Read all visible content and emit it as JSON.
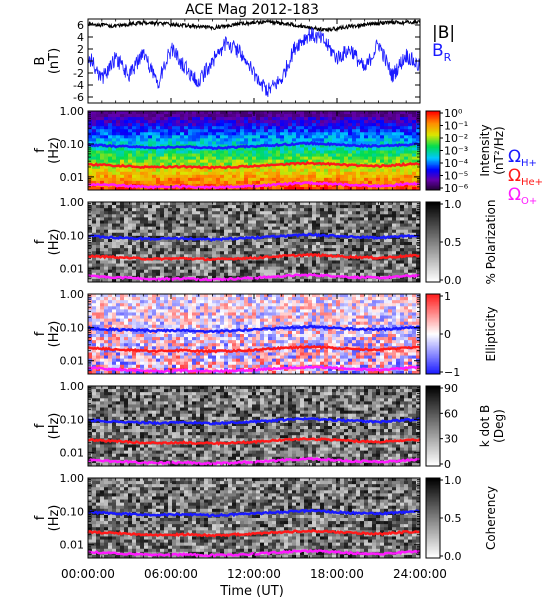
{
  "chart_data": {
    "title": "ACE Mag 2012-183",
    "type": "line",
    "xlabel": "Time (UT)",
    "x_ticks": [
      "00:00:00",
      "06:00:00",
      "12:00:00",
      "18:00:00",
      "24:00:00"
    ],
    "x_tick_hours": [
      0,
      6,
      12,
      18,
      24
    ],
    "xlim_hours": [
      0,
      24
    ],
    "freq_ticks": [
      "1.00",
      "0.10",
      "0.01"
    ],
    "freq_tick_values": [
      1.0,
      0.1,
      0.01
    ],
    "freq_range_hz": [
      0.004,
      1.0
    ],
    "cyclotron_lines": [
      {
        "label": "Ω",
        "sub": "H+",
        "color": "#1a1aff",
        "freq_hz": [
          0.095,
          0.09,
          0.085,
          0.083,
          0.08,
          0.078,
          0.08,
          0.082,
          0.078,
          0.075,
          0.078,
          0.082,
          0.085,
          0.09,
          0.095,
          0.1,
          0.105,
          0.1,
          0.095,
          0.09,
          0.088,
          0.085,
          0.09,
          0.095,
          0.1
        ]
      },
      {
        "label": "Ω",
        "sub": "He+",
        "color": "#ff1a1a",
        "freq_hz": [
          0.024,
          0.023,
          0.022,
          0.021,
          0.02,
          0.0195,
          0.02,
          0.0205,
          0.0195,
          0.019,
          0.0195,
          0.0205,
          0.021,
          0.0225,
          0.024,
          0.025,
          0.026,
          0.025,
          0.024,
          0.0225,
          0.022,
          0.021,
          0.0225,
          0.024,
          0.025
        ]
      },
      {
        "label": "Ω",
        "sub": "O+",
        "color": "#ff1aff",
        "freq_hz": [
          0.006,
          0.0058,
          0.0055,
          0.0053,
          0.005,
          0.0049,
          0.005,
          0.0051,
          0.0049,
          0.0048,
          0.0049,
          0.0051,
          0.0053,
          0.0056,
          0.006,
          0.0063,
          0.0065,
          0.0063,
          0.006,
          0.0056,
          0.0055,
          0.0053,
          0.0056,
          0.006,
          0.0063
        ]
      }
    ],
    "panels": [
      {
        "kind": "timeseries",
        "ylabel": "B",
        "yunit": "(nT)",
        "ylim": [
          -7,
          7
        ],
        "y_ticks": [
          6,
          4,
          2,
          0,
          -2,
          -4,
          -6
        ],
        "series": [
          {
            "name": "|B|",
            "color": "#000000",
            "values": [
              6.2,
              6.0,
              5.8,
              6.1,
              6.4,
              6.3,
              6.1,
              5.9,
              5.7,
              5.5,
              5.9,
              6.2,
              6.4,
              6.6,
              6.3,
              6.0,
              5.6,
              5.2,
              5.4,
              5.8,
              6.0,
              6.3,
              6.5,
              6.4,
              6.6
            ]
          },
          {
            "name": "B",
            "sub": "R",
            "color": "#1a1aff",
            "values": [
              1.0,
              -3.0,
              0.5,
              -2.5,
              1.5,
              -4.0,
              2.0,
              -1.0,
              -3.5,
              0.0,
              3.0,
              1.5,
              -2.0,
              -5.0,
              -3.0,
              2.5,
              4.5,
              3.5,
              0.5,
              2.0,
              -1.5,
              3.0,
              -2.5,
              1.0,
              -1.0
            ]
          }
        ]
      },
      {
        "kind": "spectrogram",
        "cmap": "rainbow",
        "cbar_label": "Intensity",
        "cbar_unit": "(nT²/Hz)",
        "cbar_ticks": [
          "10⁰",
          "10⁻¹",
          "10⁻²",
          "10⁻³",
          "10⁻⁴",
          "10⁻⁵",
          "10⁻⁶"
        ]
      },
      {
        "kind": "spectrogram",
        "cmap": "gray",
        "cbar_label": "% Polarization",
        "cbar_unit": "",
        "cbar_ticks": [
          "1.0",
          "0.5",
          "0.0"
        ]
      },
      {
        "kind": "spectrogram",
        "cmap": "bwr",
        "cbar_label": "Ellipticity",
        "cbar_unit": "",
        "cbar_ticks": [
          "1",
          "0",
          "−1"
        ]
      },
      {
        "kind": "spectrogram",
        "cmap": "gray",
        "cbar_label": "k dot B",
        "cbar_unit": "(Deg)",
        "cbar_ticks": [
          "90",
          "60",
          "30",
          "0"
        ]
      },
      {
        "kind": "spectrogram",
        "cmap": "gray",
        "cbar_label": "Coherency",
        "cbar_unit": "",
        "cbar_ticks": [
          "1.0",
          "0.5",
          "0.0"
        ]
      }
    ],
    "freq_ylabel": "f",
    "freq_yunit": "(Hz)"
  }
}
